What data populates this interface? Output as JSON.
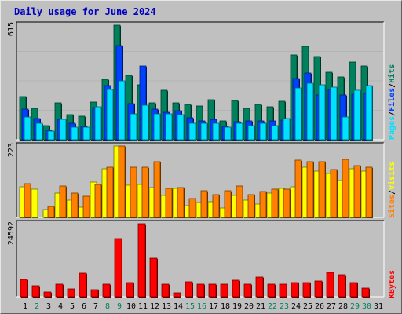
{
  "title": "Daily usage for June 2024",
  "colors": {
    "hits": "#00805c",
    "files": "#0040ff",
    "pages": "#00e0ff",
    "visits": "#ffff00",
    "sites": "#ff8000",
    "kbytes": "#ff0000",
    "weekday": "#000000",
    "weekend": "#00805c",
    "title": "#0000c0"
  },
  "chart_data": [
    {
      "type": "bar",
      "name": "hits-files-pages",
      "ymax_label": "615",
      "ylim": [
        0,
        615
      ],
      "legend": [
        "Pages",
        "/",
        "Files",
        "/",
        "Hits"
      ],
      "categories": [
        "1",
        "2",
        "3",
        "4",
        "5",
        "6",
        "7",
        "8",
        "9",
        "10",
        "11",
        "12",
        "13",
        "14",
        "15",
        "16",
        "17",
        "18",
        "19",
        "20",
        "21",
        "22",
        "23",
        "24",
        "25",
        "26",
        "27",
        "28",
        "29",
        "30",
        "31"
      ],
      "weekend": [
        false,
        true,
        false,
        false,
        false,
        false,
        false,
        true,
        true,
        false,
        false,
        false,
        false,
        false,
        true,
        true,
        false,
        false,
        false,
        false,
        false,
        true,
        true,
        false,
        false,
        false,
        false,
        false,
        true,
        true,
        false
      ],
      "series": [
        {
          "name": "Hits",
          "values": [
            232,
            168,
            76,
            196,
            133,
            127,
            203,
            323,
            615,
            345,
            295,
            198,
            265,
            196,
            191,
            181,
            213,
            102,
            212,
            170,
            189,
            178,
            206,
            456,
            503,
            446,
            362,
            336,
            417,
            395,
            0
          ]
        },
        {
          "name": "Files",
          "values": [
            163,
            113,
            51,
            109,
            90,
            73,
            172,
            290,
            505,
            193,
            396,
            166,
            148,
            156,
            116,
            103,
            111,
            72,
            95,
            102,
            102,
            102,
            105,
            328,
            360,
            238,
            269,
            238,
            244,
            248,
            0
          ]
        },
        {
          "name": "Pages",
          "values": [
            121,
            90,
            48,
            109,
            66,
            68,
            175,
            269,
            318,
            139,
            186,
            139,
            139,
            135,
            89,
            89,
            89,
            66,
            89,
            76,
            89,
            77,
            115,
            279,
            304,
            295,
            282,
            122,
            267,
            290,
            0
          ]
        }
      ]
    },
    {
      "type": "bar",
      "name": "visits-sites",
      "ymax_label": "223",
      "ylim": [
        0,
        223
      ],
      "legend": [
        "Sites",
        "/",
        "Visits"
      ],
      "series": [
        {
          "name": "Visits",
          "values": [
            96,
            89,
            24,
            77,
            53,
            31,
            110,
            151,
            223,
            101,
            104,
            93,
            68,
            91,
            36,
            47,
            50,
            29,
            68,
            53,
            41,
            77,
            90,
            95,
            157,
            145,
            137,
            116,
            153,
            144,
            0
          ]
        },
        {
          "name": "Sites",
          "values": [
            106,
            0,
            35,
            98,
            75,
            66,
            102,
            157,
            226,
            158,
            157,
            173,
            91,
            93,
            59,
            84,
            72,
            84,
            97,
            72,
            82,
            88,
            88,
            178,
            173,
            174,
            150,
            181,
            161,
            158,
            0
          ]
        }
      ]
    },
    {
      "type": "bar",
      "name": "kbytes",
      "ymax_label": "24592",
      "ylim": [
        0,
        24592
      ],
      "legend": [
        "KBytes"
      ],
      "series": [
        {
          "name": "KBytes",
          "values": [
            5900,
            3800,
            1500,
            4200,
            2600,
            7900,
            2400,
            4300,
            19500,
            4800,
            24592,
            13000,
            4200,
            1300,
            5100,
            4300,
            4300,
            4100,
            5500,
            4100,
            6700,
            4300,
            4200,
            4800,
            4800,
            5200,
            8300,
            7400,
            4800,
            3000,
            0
          ]
        }
      ]
    }
  ]
}
